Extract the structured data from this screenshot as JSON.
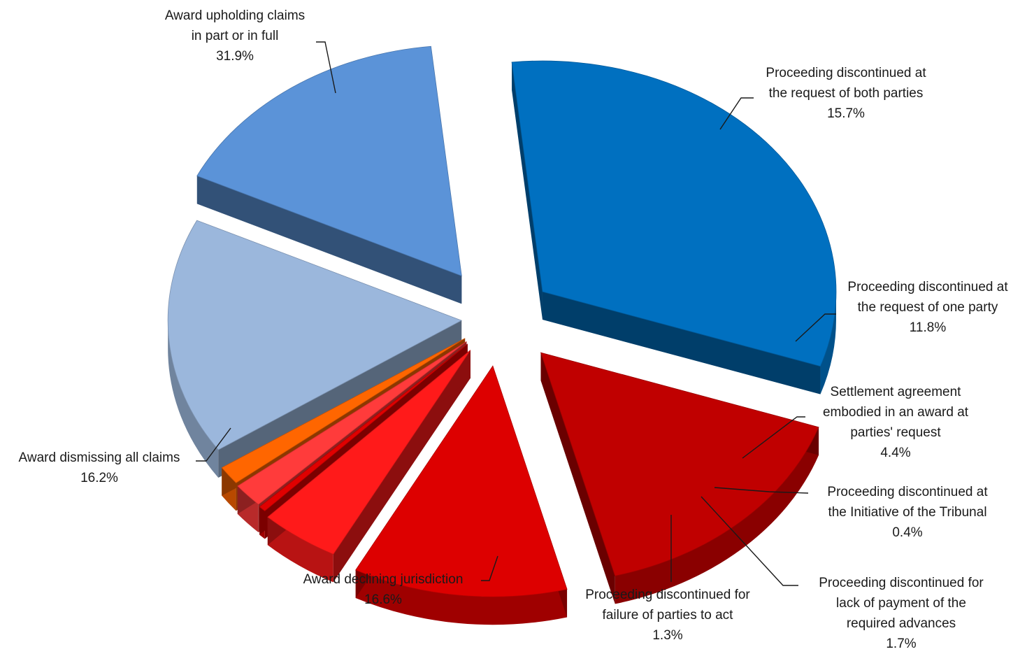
{
  "chart_data": {
    "type": "pie",
    "title": "",
    "style": "3d-exploded",
    "slices": [
      {
        "label_lines": [
          "Award upholding claims",
          "in part or in full"
        ],
        "pct_label": "31.9%",
        "value": 31.9,
        "color": "#0070c0"
      },
      {
        "label_lines": [
          "Proceeding discontinued at",
          "the request of both parties"
        ],
        "pct_label": "15.7%",
        "value": 15.7,
        "color": "#c00000"
      },
      {
        "label_lines": [
          "Proceeding discontinued at",
          "the request of one party"
        ],
        "pct_label": "11.8%",
        "value": 11.8,
        "color": "#dd0000"
      },
      {
        "label_lines": [
          "Settlement agreement",
          "embodied in an award at",
          "parties' request"
        ],
        "pct_label": "4.4%",
        "value": 4.4,
        "color": "#ff1a1a"
      },
      {
        "label_lines": [
          "Proceeding discontinued at",
          "the Initiative of the Tribunal"
        ],
        "pct_label": "0.4%",
        "value": 0.4,
        "color": "#e00000"
      },
      {
        "label_lines": [
          "Proceeding discontinued for",
          "lack of payment of the",
          "required advances"
        ],
        "pct_label": "1.7%",
        "value": 1.7,
        "color": "#ff3b3b"
      },
      {
        "label_lines": [
          "Proceeding discontinued for",
          "failure of parties to act"
        ],
        "pct_label": "1.3%",
        "value": 1.3,
        "color": "#ff6600"
      },
      {
        "label_lines": [
          "Award declining jurisdiction"
        ],
        "pct_label": "16.6%",
        "value": 16.6,
        "color": "#9bb7dc"
      },
      {
        "label_lines": [
          "Award dismissing all claims"
        ],
        "pct_label": "16.2%",
        "value": 16.2,
        "color": "#5b93d8"
      }
    ]
  }
}
